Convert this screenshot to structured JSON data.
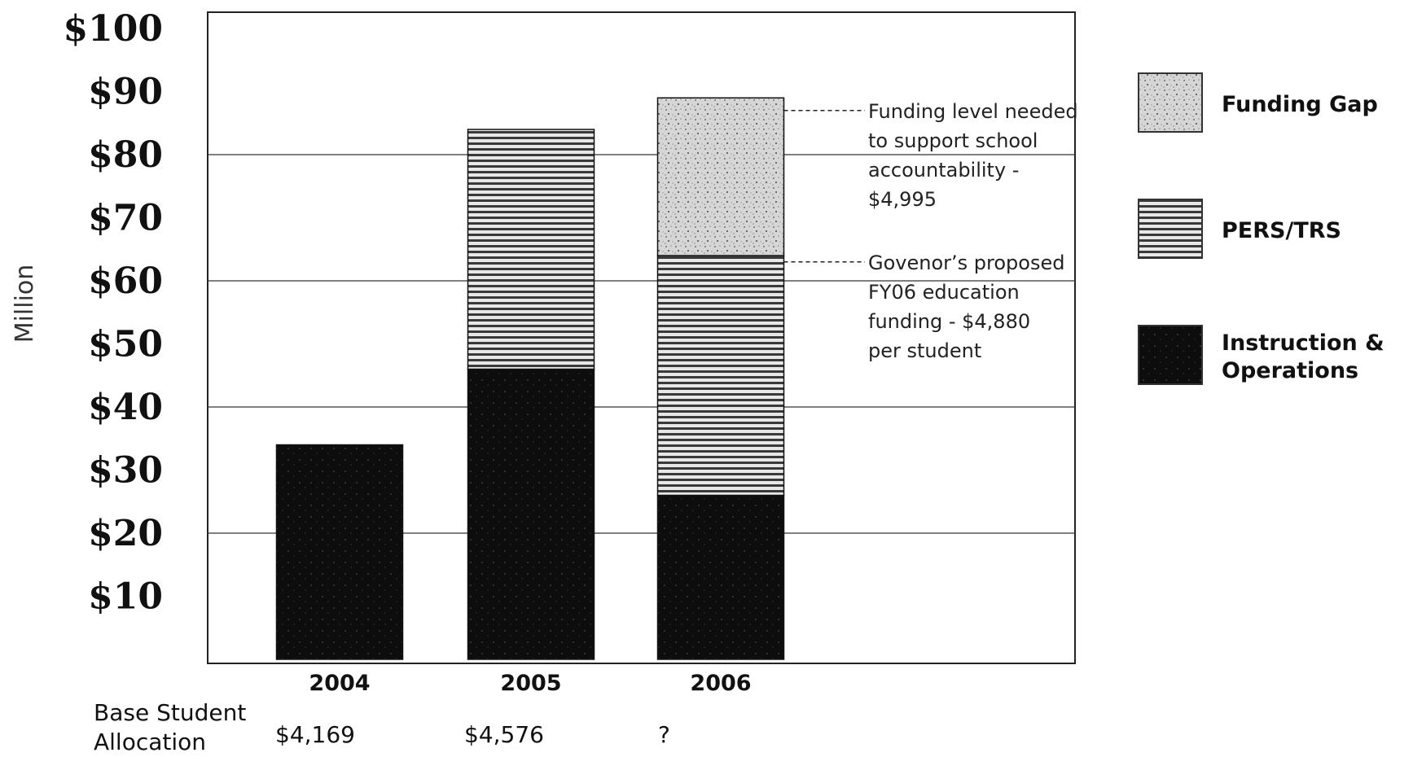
{
  "chart_data": {
    "type": "bar",
    "stacked": true,
    "categories": [
      "2004",
      "2005",
      "2006"
    ],
    "series": [
      {
        "name": "Instruction & Operations",
        "values": [
          34,
          46,
          26
        ],
        "color": "#0d0d0d"
      },
      {
        "name": "PERS/TRS",
        "values": [
          0,
          38,
          38
        ],
        "color": "#7a7a7a"
      },
      {
        "name": "Funding Gap",
        "values": [
          0,
          0,
          25
        ],
        "color": "#c8c8c8"
      }
    ],
    "ylabel": "Million",
    "ylim": [
      0,
      100
    ],
    "yticks": [
      10,
      20,
      30,
      40,
      50,
      60,
      70,
      80,
      90,
      100
    ],
    "ytick_labels": [
      "$10",
      "$20",
      "$30",
      "$40",
      "$50",
      "$60",
      "$70",
      "$80",
      "$90",
      "$100"
    ],
    "gridlines": [
      20,
      40,
      60,
      80
    ],
    "legend_position": "right",
    "legend": [
      {
        "label": "Funding Gap",
        "color": "#c8c8c8"
      },
      {
        "label": "PERS/TRS",
        "color": "#7a7a7a"
      },
      {
        "label": "Instruction &\nOperations",
        "color": "#0d0d0d"
      }
    ],
    "annotations": [
      {
        "level": 87,
        "lines": [
          "Funding level needed",
          "to support school",
          "accountability -",
          "$4,995"
        ]
      },
      {
        "level": 63,
        "lines": [
          "Govenor’s proposed",
          "FY06 education",
          "funding - $4,880",
          "per student"
        ]
      }
    ],
    "base_student_allocation": {
      "label_lines": [
        "Base Student",
        "Allocation"
      ],
      "values": [
        "$4,169",
        "$4,576",
        "?"
      ]
    }
  }
}
